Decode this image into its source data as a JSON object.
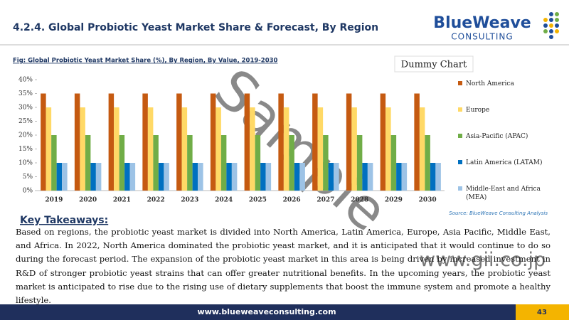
{
  "header": {
    "title": "4.2.4. Global Probiotic Yeast Market Share & Forecast, By Region",
    "logo_name": "BlueWeave",
    "logo_sub": "CONSULTING"
  },
  "chart_data": {
    "type": "bar",
    "title": "Fig: Global Probiotic Yeast Market Share (%), By Region, By Value, 2019-2030",
    "annotation": "Dummy Chart",
    "source": "Source: BlueWeave Consulting Analysis",
    "categories": [
      "2019",
      "2020",
      "2021",
      "2022",
      "2023",
      "2024",
      "2025",
      "2026",
      "2027",
      "2028",
      "2029",
      "2030"
    ],
    "series": [
      {
        "name": "North America",
        "color": "#c55a11",
        "values": [
          35,
          35,
          35,
          35,
          35,
          35,
          35,
          35,
          35,
          35,
          35,
          35
        ]
      },
      {
        "name": "Europe",
        "color": "#ffd966",
        "values": [
          30,
          30,
          30,
          30,
          30,
          30,
          30,
          30,
          30,
          30,
          30,
          30
        ]
      },
      {
        "name": "Asia-Pacific (APAC)",
        "color": "#70ad47",
        "values": [
          20,
          20,
          20,
          20,
          20,
          20,
          20,
          20,
          20,
          20,
          20,
          20
        ]
      },
      {
        "name": "Latin America (LATAM)",
        "color": "#0070c0",
        "values": [
          10,
          10,
          10,
          10,
          10,
          10,
          10,
          10,
          10,
          10,
          10,
          10
        ]
      },
      {
        "name": "Middle-East and Africa (MEA)",
        "color": "#9dc3e6",
        "values": [
          10,
          10,
          10,
          10,
          10,
          10,
          10,
          10,
          10,
          10,
          10,
          10
        ]
      }
    ],
    "ylim": [
      0,
      40
    ],
    "yticks": [
      {
        "value": 0,
        "label": "0%"
      },
      {
        "value": 5,
        "label": "5%"
      },
      {
        "value": 10,
        "label": "10%"
      },
      {
        "value": 15,
        "label": "15%"
      },
      {
        "value": 20,
        "label": "20%"
      },
      {
        "value": 25,
        "label": "25%"
      },
      {
        "value": 30,
        "label": "30%"
      },
      {
        "value": 35,
        "label": "35%"
      },
      {
        "value": 40,
        "label": "40%"
      }
    ],
    "grid": false,
    "legend": "right"
  },
  "takeaways": {
    "heading": "Key Takeaways:",
    "text": "Based on regions, the probiotic yeast market is divided into North America, Latin America, Europe, Asia Pacific, Middle East, and Africa. In 2022, North America dominated the probiotic yeast market, and it is anticipated that it would continue to do so during the forecast period. The expansion of the probiotic yeast market in this area is being driven by increased investment in R&D of stronger probiotic yeast strains that can offer greater nutritional benefits. In the upcoming years, the probiotic yeast market is anticipated to rise due to the rising use of dietary supplements that boost the immune system and promote a healthy lifestyle."
  },
  "watermark": {
    "text": "Sample",
    "site": "www.gii.co.jp"
  },
  "footer": {
    "url": "www.blueweaveconsulting.com",
    "page": "43"
  }
}
